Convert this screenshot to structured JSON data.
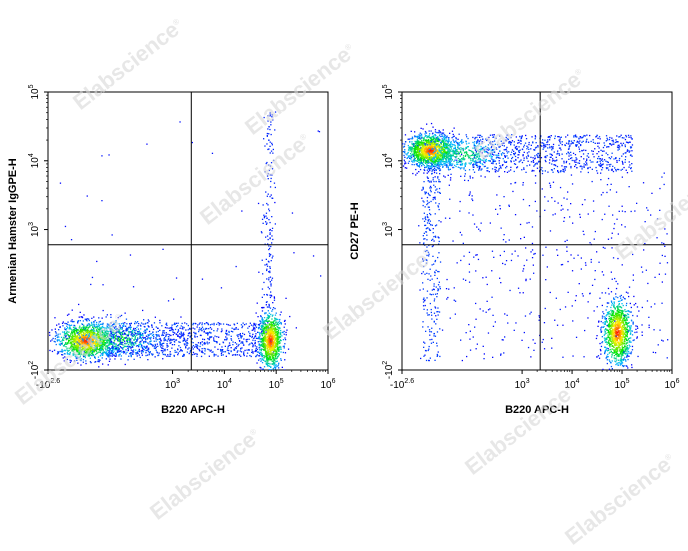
{
  "watermark": {
    "text": "Elabscience",
    "mark": "®",
    "color": "#d8d8d8"
  },
  "chart_data": [
    {
      "type": "scatter",
      "title": "",
      "xlabel": "B220 APC-H",
      "ylabel": "Armenian Hamster IgGPE-H",
      "x_scale": "biexponential",
      "y_scale": "biexponential",
      "xlim": [
        -400,
        1000000
      ],
      "ylim": [
        -100,
        100000
      ],
      "x_ticks": [
        {
          "value": -400,
          "label": "-10",
          "exp": "2.6"
        },
        {
          "value": 1000,
          "label": "10",
          "exp": "3"
        },
        {
          "value": 10000,
          "label": "10",
          "exp": "4"
        },
        {
          "value": 100000,
          "label": "10",
          "exp": "5"
        },
        {
          "value": 1000000,
          "label": "10",
          "exp": "6"
        }
      ],
      "y_ticks": [
        {
          "value": -100,
          "label": "-10",
          "exp": "2"
        },
        {
          "value": 1000,
          "label": "10",
          "exp": "3"
        },
        {
          "value": 10000,
          "label": "10",
          "exp": "4"
        },
        {
          "value": 100000,
          "label": "10",
          "exp": "5"
        }
      ],
      "quadrant_gate": {
        "x": 2300,
        "y": 600
      },
      "populations": [
        {
          "name": "B220- cluster",
          "x_center": -100,
          "y_center": -10,
          "weight": 0.45
        },
        {
          "name": "B220+ cluster",
          "x_center": 110000,
          "y_center": 0,
          "weight": 0.35
        },
        {
          "name": "spread",
          "x_center": 3000,
          "y_center": 0,
          "weight": 0.2
        }
      ],
      "color_scale": [
        "#0000ff",
        "#00c0ff",
        "#00ff00",
        "#ffff00",
        "#ff0000"
      ]
    },
    {
      "type": "scatter",
      "title": "",
      "xlabel": "B220 APC-H",
      "ylabel": "CD27 PE-H",
      "x_scale": "biexponential",
      "y_scale": "biexponential",
      "xlim": [
        -400,
        1000000
      ],
      "ylim": [
        -100,
        100000
      ],
      "x_ticks": [
        {
          "value": -400,
          "label": "-10",
          "exp": "2.6"
        },
        {
          "value": 1000,
          "label": "10",
          "exp": "3"
        },
        {
          "value": 10000,
          "label": "10",
          "exp": "4"
        },
        {
          "value": 100000,
          "label": "10",
          "exp": "5"
        },
        {
          "value": 1000000,
          "label": "10",
          "exp": "6"
        }
      ],
      "y_ticks": [
        {
          "value": -100,
          "label": "-10",
          "exp": "2"
        },
        {
          "value": 1000,
          "label": "10",
          "exp": "3"
        },
        {
          "value": 10000,
          "label": "10",
          "exp": "4"
        },
        {
          "value": 100000,
          "label": "10",
          "exp": "5"
        }
      ],
      "quadrant_gate": {
        "x": 2300,
        "y": 600
      },
      "populations": [
        {
          "name": "B220- CD27+ cluster",
          "x_center": -100,
          "y_center": 17000,
          "weight": 0.45
        },
        {
          "name": "B220+ CD27- cluster",
          "x_center": 90000,
          "y_center": 0,
          "weight": 0.35
        },
        {
          "name": "CD27+ tail",
          "x_center": 20000,
          "y_center": 17000,
          "weight": 0.12
        },
        {
          "name": "scatter",
          "x_center": 3000,
          "y_center": 300,
          "weight": 0.08
        }
      ],
      "color_scale": [
        "#0000ff",
        "#00c0ff",
        "#00ff00",
        "#ffff00",
        "#ff0000"
      ]
    }
  ]
}
